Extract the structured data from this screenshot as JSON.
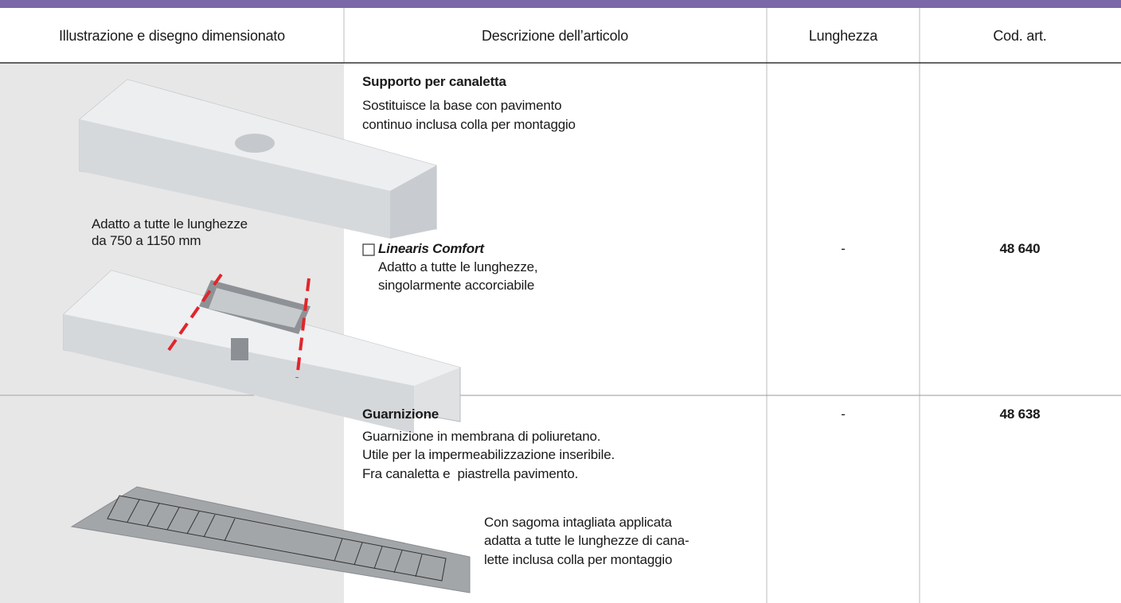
{
  "header": {
    "columns": [
      "Illustrazione e disegno dimensionato",
      "Descrizione dell’articolo",
      "Lunghezza",
      "Cod. art."
    ]
  },
  "rows": [
    {
      "illustration_note": [
        "Adatto a tutte le lunghezze",
        "da 750 a 1150 mm"
      ],
      "title": "Supporto per canaletta",
      "description": [
        "Sostituisce la base con pavimento",
        "continuo inclusa colla per montaggio"
      ],
      "option": {
        "label": "Linearis Comfort",
        "lines": [
          "Adatto a tutte le lunghezze,",
          "singolarmente accorciabile"
        ]
      },
      "length": "-",
      "code": "48 640"
    },
    {
      "title": "Guarnizione",
      "description": [
        "Guarnizione in membrana di poliuretano.",
        "Utile per la impermeabilizzazione inseribile.",
        "Fra canaletta e  piastrella pavimento."
      ],
      "note": [
        "Con sagoma intagliata applicata",
        "adatta a tutte le lunghezze di cana-",
        "lette inclusa colla per montaggio"
      ],
      "length": "-",
      "code": "48 638"
    }
  ]
}
